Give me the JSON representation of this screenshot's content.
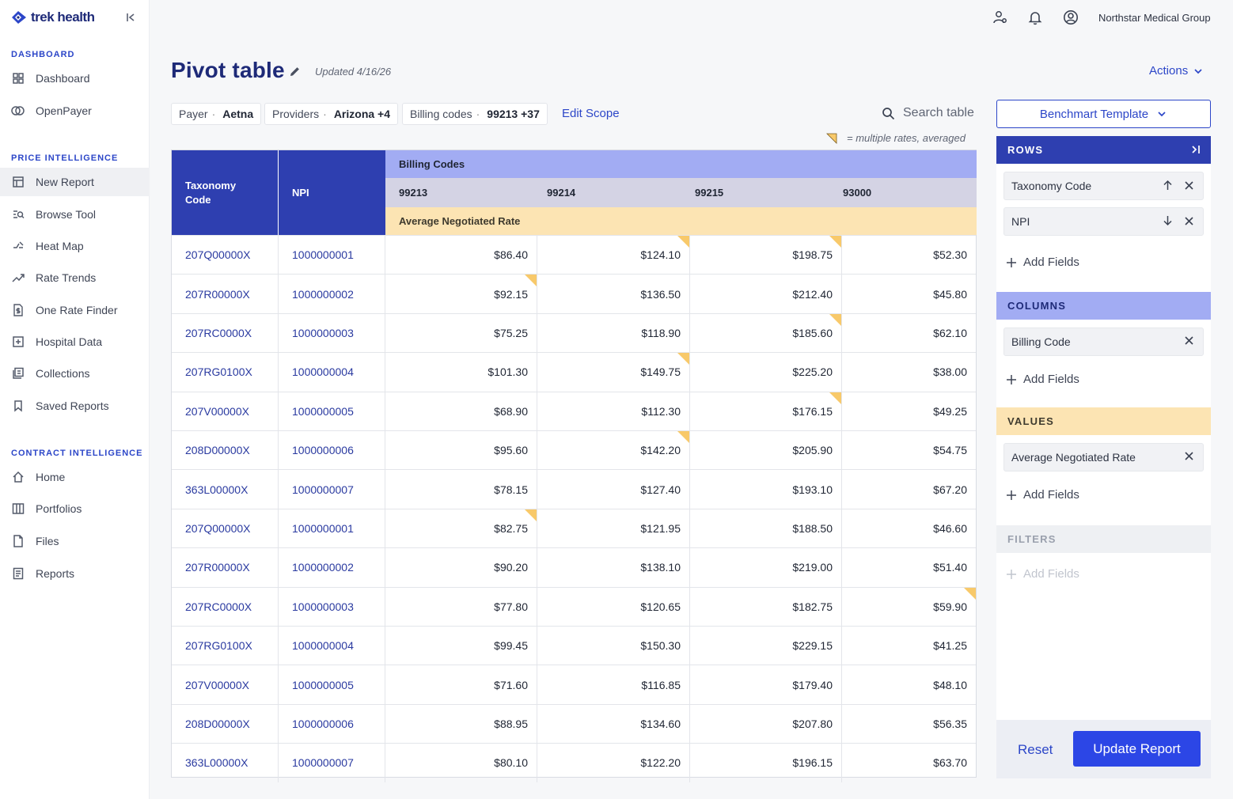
{
  "app": {
    "brand": "trek health",
    "org_name": "Northstar Medical Group"
  },
  "sidebar": {
    "sections": [
      {
        "title": "DASHBOARD",
        "items": [
          {
            "label": "Dashboard",
            "icon": "grid-icon"
          },
          {
            "label": "OpenPayer",
            "icon": "payer-icon"
          }
        ]
      },
      {
        "title": "PRICE INTELLIGENCE",
        "items": [
          {
            "label": "New Report",
            "icon": "table-icon"
          },
          {
            "label": "Browse Tool",
            "icon": "browse-icon"
          },
          {
            "label": "Heat Map",
            "icon": "heat-map-icon"
          },
          {
            "label": "Rate Trends",
            "icon": "trend-icon"
          },
          {
            "label": "One Rate Finder",
            "icon": "dollar-file-icon"
          },
          {
            "label": "Hospital Data",
            "icon": "hospital-icon"
          },
          {
            "label": "Collections",
            "icon": "collections-icon"
          },
          {
            "label": "Saved Reports",
            "icon": "bookmark-icon"
          }
        ]
      },
      {
        "title": "CONTRACT INTELLIGENCE",
        "items": [
          {
            "label": "Home",
            "icon": "home-icon"
          },
          {
            "label": "Portfolios",
            "icon": "portfolio-icon"
          },
          {
            "label": "Files",
            "icon": "file-icon"
          },
          {
            "label": "Reports",
            "icon": "report-icon"
          }
        ]
      }
    ],
    "active_item": "New Report"
  },
  "page": {
    "title": "Pivot table",
    "updated": "Updated 4/16/26",
    "actions_label": "Actions"
  },
  "scope": {
    "chips": [
      {
        "key": "Payer",
        "value": "Aetna"
      },
      {
        "key": "Providers",
        "value": "Arizona +4"
      },
      {
        "key": "Billing codes",
        "value": "99213 +37"
      }
    ],
    "edit_label": "Edit Scope",
    "separator": "·"
  },
  "search": {
    "placeholder": "Search table"
  },
  "legend_text": "= multiple rates, averaged",
  "table": {
    "row_headers": [
      "Taxonomy Code",
      "NPI"
    ],
    "column_group": "Billing Codes",
    "billing_codes": [
      "99213",
      "99214",
      "99215",
      "93000"
    ],
    "value_label": "Average Negotiated Rate",
    "rows": [
      {
        "taxonomy": "207Q00000X",
        "npi": "1000000001",
        "rates": [
          "$86.40",
          "$124.10",
          "$198.75",
          "$52.30"
        ],
        "averaged": [
          false,
          true,
          true,
          false
        ]
      },
      {
        "taxonomy": "207R00000X",
        "npi": "1000000002",
        "rates": [
          "$92.15",
          "$136.50",
          "$212.40",
          "$45.80"
        ],
        "averaged": [
          true,
          false,
          false,
          false
        ]
      },
      {
        "taxonomy": "207RC0000X",
        "npi": "1000000003",
        "rates": [
          "$75.25",
          "$118.90",
          "$185.60",
          "$62.10"
        ],
        "averaged": [
          false,
          false,
          true,
          false
        ]
      },
      {
        "taxonomy": "207RG0100X",
        "npi": "1000000004",
        "rates": [
          "$101.30",
          "$149.75",
          "$225.20",
          "$38.00"
        ],
        "averaged": [
          false,
          true,
          false,
          false
        ]
      },
      {
        "taxonomy": "207V00000X",
        "npi": "1000000005",
        "rates": [
          "$68.90",
          "$112.30",
          "$176.15",
          "$49.25"
        ],
        "averaged": [
          false,
          false,
          true,
          false
        ]
      },
      {
        "taxonomy": "208D00000X",
        "npi": "1000000006",
        "rates": [
          "$95.60",
          "$142.20",
          "$205.90",
          "$54.75"
        ],
        "averaged": [
          false,
          true,
          false,
          false
        ]
      },
      {
        "taxonomy": "363L00000X",
        "npi": "1000000007",
        "rates": [
          "$78.15",
          "$127.40",
          "$193.10",
          "$67.20"
        ],
        "averaged": [
          false,
          false,
          false,
          false
        ]
      },
      {
        "taxonomy": "207Q00000X",
        "npi": "1000000001",
        "rates": [
          "$82.75",
          "$121.95",
          "$188.50",
          "$46.60"
        ],
        "averaged": [
          true,
          false,
          false,
          false
        ]
      },
      {
        "taxonomy": "207R00000X",
        "npi": "1000000002",
        "rates": [
          "$90.20",
          "$138.10",
          "$219.00",
          "$51.40"
        ],
        "averaged": [
          false,
          false,
          false,
          false
        ]
      },
      {
        "taxonomy": "207RC0000X",
        "npi": "1000000003",
        "rates": [
          "$77.80",
          "$120.65",
          "$182.75",
          "$59.90"
        ],
        "averaged": [
          false,
          false,
          false,
          true
        ]
      },
      {
        "taxonomy": "207RG0100X",
        "npi": "1000000004",
        "rates": [
          "$99.45",
          "$150.30",
          "$229.15",
          "$41.25"
        ],
        "averaged": [
          false,
          false,
          false,
          false
        ]
      },
      {
        "taxonomy": "207V00000X",
        "npi": "1000000005",
        "rates": [
          "$71.60",
          "$116.85",
          "$179.40",
          "$48.10"
        ],
        "averaged": [
          false,
          false,
          false,
          false
        ]
      },
      {
        "taxonomy": "208D00000X",
        "npi": "1000000006",
        "rates": [
          "$88.95",
          "$134.60",
          "$207.80",
          "$56.35"
        ],
        "averaged": [
          false,
          false,
          false,
          false
        ]
      },
      {
        "taxonomy": "363L00000X",
        "npi": "1000000007",
        "rates": [
          "$80.10",
          "$122.20",
          "$196.15",
          "$63.70"
        ],
        "averaged": [
          false,
          false,
          false,
          false
        ]
      }
    ]
  },
  "panel": {
    "template_label": "Benchmart Template",
    "rows_title": "ROWS",
    "rows_fields": [
      "Taxonomy Code",
      "NPI"
    ],
    "columns_title": "COLUMNS",
    "columns_fields": [
      "Billing Code"
    ],
    "values_title": "VALUES",
    "values_fields": [
      "Average Negotiated Rate"
    ],
    "filters_title": "FILTERS",
    "add_fields_label": "Add Fields",
    "reset_label": "Reset",
    "update_label": "Update Report"
  },
  "colors": {
    "brand_blue": "#2c46c8",
    "header_navy": "#2e3fb0",
    "columns_band": "#a2acf3",
    "values_band": "#fce4b3",
    "averaged_marker": "#f8c96a"
  }
}
